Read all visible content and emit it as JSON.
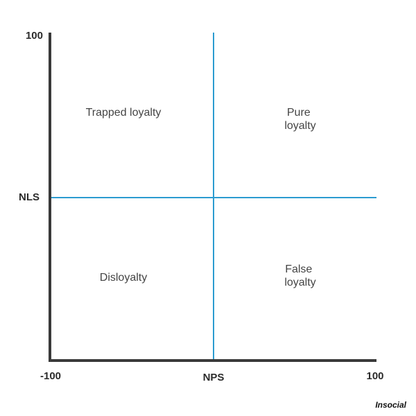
{
  "axes": {
    "y_top": "100",
    "y_label": "NLS",
    "x_left": "-100",
    "x_label": "NPS",
    "x_right": "100"
  },
  "quadrants": [
    {
      "lines": [
        "Trapped loyalty"
      ]
    },
    {
      "lines": [
        "Pure",
        "loyalty"
      ]
    },
    {
      "lines": [
        "Disloyalty"
      ]
    },
    {
      "lines": [
        "False",
        "loyalty"
      ]
    }
  ],
  "brand": "Insocial"
}
